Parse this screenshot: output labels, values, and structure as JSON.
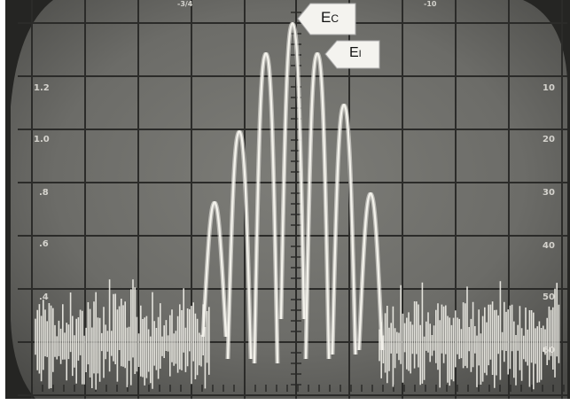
{
  "markers": {
    "center": {
      "main": "E",
      "sub": "C"
    },
    "first": {
      "main": "E",
      "sub": "I"
    }
  },
  "scale_left": [
    "1.2",
    "1.0",
    ".8",
    ".6",
    ".4"
  ],
  "scale_right": [
    "10",
    "20",
    "30",
    "40",
    "50",
    "60"
  ],
  "top_marks": [
    "-3/4",
    "-10"
  ],
  "colors": {
    "screen": "#6f6f6b",
    "bezel": "#262624",
    "grid": "#2a2a28",
    "trace": "#f2f1ea"
  }
}
